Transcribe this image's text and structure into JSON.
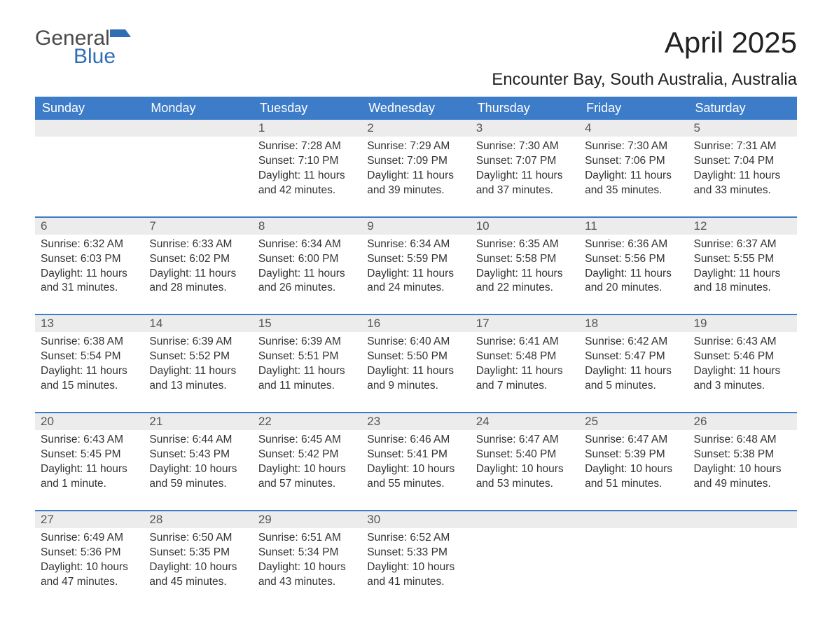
{
  "brand": {
    "word1": "General",
    "word2": "Blue",
    "flag_color": "#2f6eb5",
    "text_color_1": "#4a4a4a",
    "text_color_2": "#2f6eb5"
  },
  "title": "April 2025",
  "location": "Encounter Bay, South Australia, Australia",
  "colors": {
    "header_bg": "#3d7cc9",
    "header_fg": "#ffffff",
    "daynum_bg": "#ececec",
    "daynum_fg": "#555555",
    "body_fg": "#333333",
    "rule": "#3d7cc9",
    "page_bg": "#ffffff"
  },
  "typography": {
    "title_fontsize": 42,
    "location_fontsize": 24,
    "dow_fontsize": 18,
    "daynum_fontsize": 17,
    "detail_fontsize": 15.5,
    "logo_fontsize": 30
  },
  "days_of_week": [
    "Sunday",
    "Monday",
    "Tuesday",
    "Wednesday",
    "Thursday",
    "Friday",
    "Saturday"
  ],
  "weeks": [
    {
      "nums": [
        "",
        "",
        "1",
        "2",
        "3",
        "4",
        "5"
      ],
      "cells": [
        {
          "sunrise": "",
          "sunset": "",
          "daylight": ""
        },
        {
          "sunrise": "",
          "sunset": "",
          "daylight": ""
        },
        {
          "sunrise": "Sunrise: 7:28 AM",
          "sunset": "Sunset: 7:10 PM",
          "daylight": "Daylight: 11 hours and 42 minutes."
        },
        {
          "sunrise": "Sunrise: 7:29 AM",
          "sunset": "Sunset: 7:09 PM",
          "daylight": "Daylight: 11 hours and 39 minutes."
        },
        {
          "sunrise": "Sunrise: 7:30 AM",
          "sunset": "Sunset: 7:07 PM",
          "daylight": "Daylight: 11 hours and 37 minutes."
        },
        {
          "sunrise": "Sunrise: 7:30 AM",
          "sunset": "Sunset: 7:06 PM",
          "daylight": "Daylight: 11 hours and 35 minutes."
        },
        {
          "sunrise": "Sunrise: 7:31 AM",
          "sunset": "Sunset: 7:04 PM",
          "daylight": "Daylight: 11 hours and 33 minutes."
        }
      ]
    },
    {
      "nums": [
        "6",
        "7",
        "8",
        "9",
        "10",
        "11",
        "12"
      ],
      "cells": [
        {
          "sunrise": "Sunrise: 6:32 AM",
          "sunset": "Sunset: 6:03 PM",
          "daylight": "Daylight: 11 hours and 31 minutes."
        },
        {
          "sunrise": "Sunrise: 6:33 AM",
          "sunset": "Sunset: 6:02 PM",
          "daylight": "Daylight: 11 hours and 28 minutes."
        },
        {
          "sunrise": "Sunrise: 6:34 AM",
          "sunset": "Sunset: 6:00 PM",
          "daylight": "Daylight: 11 hours and 26 minutes."
        },
        {
          "sunrise": "Sunrise: 6:34 AM",
          "sunset": "Sunset: 5:59 PM",
          "daylight": "Daylight: 11 hours and 24 minutes."
        },
        {
          "sunrise": "Sunrise: 6:35 AM",
          "sunset": "Sunset: 5:58 PM",
          "daylight": "Daylight: 11 hours and 22 minutes."
        },
        {
          "sunrise": "Sunrise: 6:36 AM",
          "sunset": "Sunset: 5:56 PM",
          "daylight": "Daylight: 11 hours and 20 minutes."
        },
        {
          "sunrise": "Sunrise: 6:37 AM",
          "sunset": "Sunset: 5:55 PM",
          "daylight": "Daylight: 11 hours and 18 minutes."
        }
      ]
    },
    {
      "nums": [
        "13",
        "14",
        "15",
        "16",
        "17",
        "18",
        "19"
      ],
      "cells": [
        {
          "sunrise": "Sunrise: 6:38 AM",
          "sunset": "Sunset: 5:54 PM",
          "daylight": "Daylight: 11 hours and 15 minutes."
        },
        {
          "sunrise": "Sunrise: 6:39 AM",
          "sunset": "Sunset: 5:52 PM",
          "daylight": "Daylight: 11 hours and 13 minutes."
        },
        {
          "sunrise": "Sunrise: 6:39 AM",
          "sunset": "Sunset: 5:51 PM",
          "daylight": "Daylight: 11 hours and 11 minutes."
        },
        {
          "sunrise": "Sunrise: 6:40 AM",
          "sunset": "Sunset: 5:50 PM",
          "daylight": "Daylight: 11 hours and 9 minutes."
        },
        {
          "sunrise": "Sunrise: 6:41 AM",
          "sunset": "Sunset: 5:48 PM",
          "daylight": "Daylight: 11 hours and 7 minutes."
        },
        {
          "sunrise": "Sunrise: 6:42 AM",
          "sunset": "Sunset: 5:47 PM",
          "daylight": "Daylight: 11 hours and 5 minutes."
        },
        {
          "sunrise": "Sunrise: 6:43 AM",
          "sunset": "Sunset: 5:46 PM",
          "daylight": "Daylight: 11 hours and 3 minutes."
        }
      ]
    },
    {
      "nums": [
        "20",
        "21",
        "22",
        "23",
        "24",
        "25",
        "26"
      ],
      "cells": [
        {
          "sunrise": "Sunrise: 6:43 AM",
          "sunset": "Sunset: 5:45 PM",
          "daylight": "Daylight: 11 hours and 1 minute."
        },
        {
          "sunrise": "Sunrise: 6:44 AM",
          "sunset": "Sunset: 5:43 PM",
          "daylight": "Daylight: 10 hours and 59 minutes."
        },
        {
          "sunrise": "Sunrise: 6:45 AM",
          "sunset": "Sunset: 5:42 PM",
          "daylight": "Daylight: 10 hours and 57 minutes."
        },
        {
          "sunrise": "Sunrise: 6:46 AM",
          "sunset": "Sunset: 5:41 PM",
          "daylight": "Daylight: 10 hours and 55 minutes."
        },
        {
          "sunrise": "Sunrise: 6:47 AM",
          "sunset": "Sunset: 5:40 PM",
          "daylight": "Daylight: 10 hours and 53 minutes."
        },
        {
          "sunrise": "Sunrise: 6:47 AM",
          "sunset": "Sunset: 5:39 PM",
          "daylight": "Daylight: 10 hours and 51 minutes."
        },
        {
          "sunrise": "Sunrise: 6:48 AM",
          "sunset": "Sunset: 5:38 PM",
          "daylight": "Daylight: 10 hours and 49 minutes."
        }
      ]
    },
    {
      "nums": [
        "27",
        "28",
        "29",
        "30",
        "",
        "",
        ""
      ],
      "cells": [
        {
          "sunrise": "Sunrise: 6:49 AM",
          "sunset": "Sunset: 5:36 PM",
          "daylight": "Daylight: 10 hours and 47 minutes."
        },
        {
          "sunrise": "Sunrise: 6:50 AM",
          "sunset": "Sunset: 5:35 PM",
          "daylight": "Daylight: 10 hours and 45 minutes."
        },
        {
          "sunrise": "Sunrise: 6:51 AM",
          "sunset": "Sunset: 5:34 PM",
          "daylight": "Daylight: 10 hours and 43 minutes."
        },
        {
          "sunrise": "Sunrise: 6:52 AM",
          "sunset": "Sunset: 5:33 PM",
          "daylight": "Daylight: 10 hours and 41 minutes."
        },
        {
          "sunrise": "",
          "sunset": "",
          "daylight": ""
        },
        {
          "sunrise": "",
          "sunset": "",
          "daylight": ""
        },
        {
          "sunrise": "",
          "sunset": "",
          "daylight": ""
        }
      ]
    }
  ]
}
